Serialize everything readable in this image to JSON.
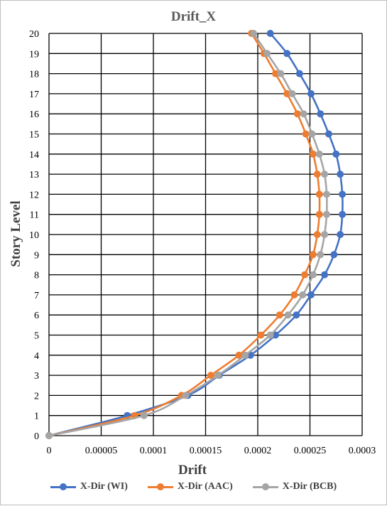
{
  "chart_data": {
    "type": "line",
    "title": "Drift_X",
    "xlabel": "Drift",
    "ylabel": "Story Level",
    "xlim": [
      0,
      0.0003
    ],
    "ylim": [
      0,
      20
    ],
    "x_ticks": [
      "0",
      "0.00005",
      "0.0001",
      "0.00015",
      "0.0002",
      "0.00025",
      "0.0003"
    ],
    "y_ticks": [
      "0",
      "1",
      "2",
      "3",
      "4",
      "5",
      "6",
      "7",
      "8",
      "9",
      "10",
      "11",
      "12",
      "13",
      "14",
      "15",
      "16",
      "17",
      "18",
      "19",
      "20"
    ],
    "grid": "vertical-and-horizontal",
    "legend_position": "bottom",
    "y": [
      0,
      1,
      2,
      3,
      4,
      5,
      6,
      7,
      8,
      9,
      10,
      11,
      12,
      13,
      14,
      15,
      16,
      17,
      18,
      19,
      20
    ],
    "series": [
      {
        "name": "X-Dir (WI)",
        "color": "#4472c4",
        "x": [
          0,
          7.5e-05,
          0.000133,
          0.000163,
          0.000193,
          0.000217,
          0.000237,
          0.000251,
          0.000264,
          0.000273,
          0.000279,
          0.000281,
          0.000281,
          0.000279,
          0.000275,
          0.000268,
          0.00026,
          0.000251,
          0.00024,
          0.000228,
          0.000212
        ]
      },
      {
        "name": "X-Dir (AAC)",
        "color": "#ed7d31",
        "x": [
          0,
          8.2e-05,
          0.000127,
          0.000155,
          0.000182,
          0.000203,
          0.000221,
          0.000235,
          0.000245,
          0.000253,
          0.000257,
          0.000259,
          0.000259,
          0.000257,
          0.000253,
          0.000246,
          0.000238,
          0.000228,
          0.000217,
          0.000206,
          0.000194
        ]
      },
      {
        "name": "X-Dir (BCB)",
        "color": "#a5a5a5",
        "x": [
          0,
          9.1e-05,
          0.000131,
          0.000162,
          0.000188,
          0.000212,
          0.000229,
          0.000243,
          0.000253,
          0.00026,
          0.000264,
          0.000266,
          0.000266,
          0.000264,
          0.000259,
          0.000252,
          0.000244,
          0.000233,
          0.000222,
          0.000209,
          0.000196
        ]
      }
    ]
  }
}
